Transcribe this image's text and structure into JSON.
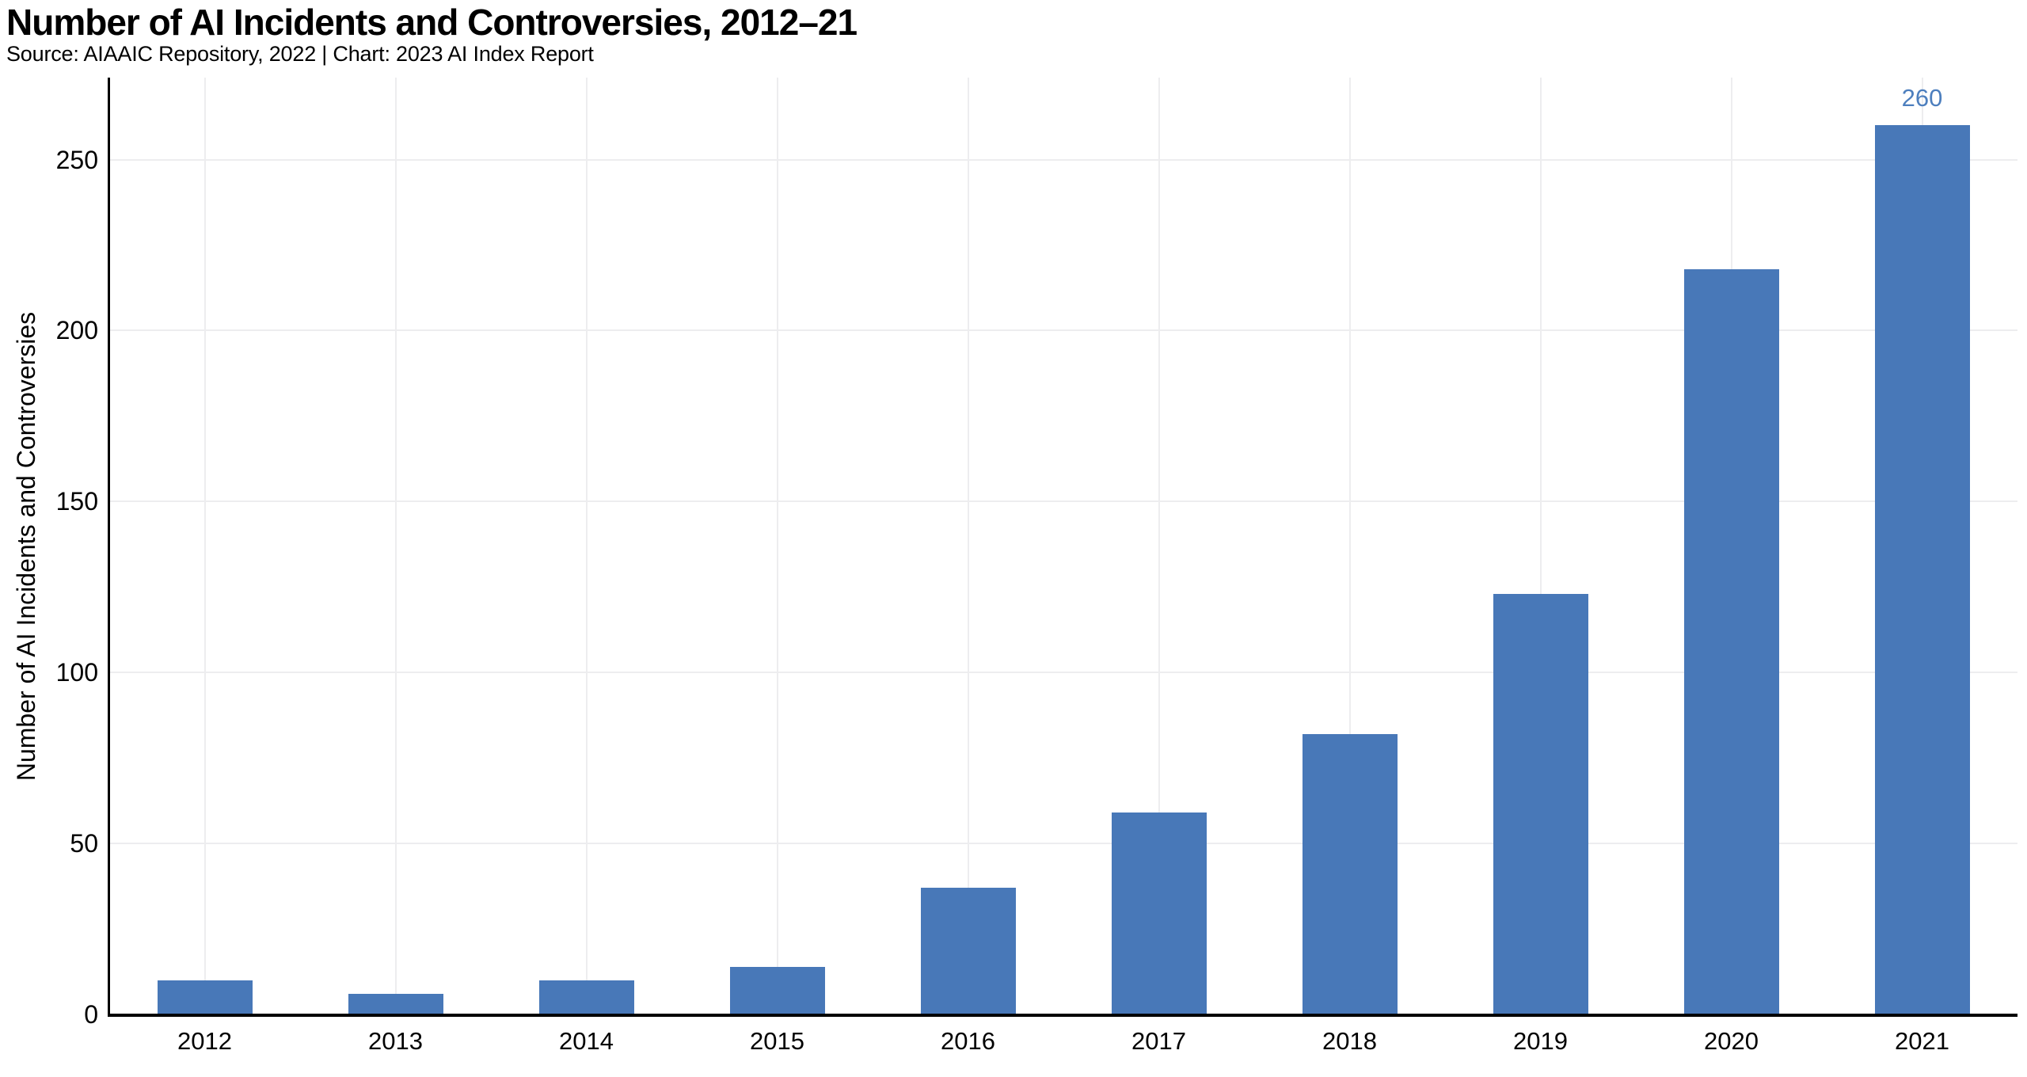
{
  "chart_data": {
    "type": "bar",
    "title": "Number of AI Incidents and Controversies, 2012–21",
    "subtitle": "Source: AIAAIC Repository, 2022 | Chart: 2023 AI Index Report",
    "xlabel": "",
    "ylabel": "Number of AI Incidents and Controversies",
    "categories": [
      "2012",
      "2013",
      "2014",
      "2015",
      "2016",
      "2017",
      "2018",
      "2019",
      "2020",
      "2021"
    ],
    "values": [
      10,
      6,
      10,
      14,
      37,
      59,
      82,
      123,
      218,
      260
    ],
    "yticks": [
      0,
      50,
      100,
      150,
      200,
      250
    ],
    "ylim": [
      0,
      274
    ],
    "grid": true,
    "legend": "none",
    "annotations": [
      {
        "category": "2021",
        "label": "260"
      }
    ],
    "colors": {
      "bar": "#4878b8",
      "bar_label": "#4d7fbe",
      "grid": "#ededef",
      "axis": "#000000",
      "text": "#000000",
      "background": "#ffffff"
    }
  }
}
